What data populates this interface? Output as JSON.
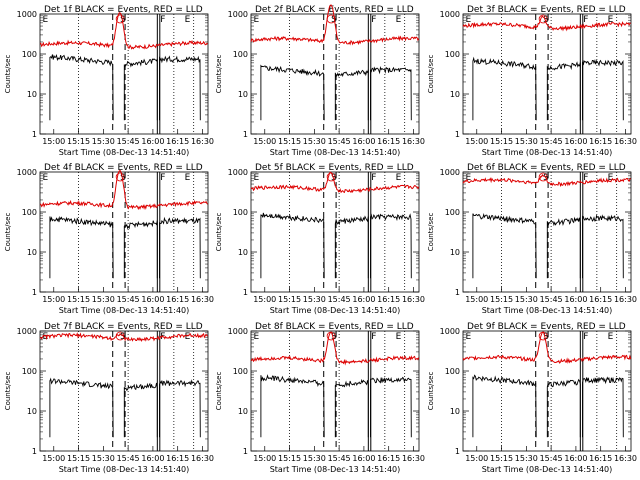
{
  "axes_common": {
    "ylabel": "Counts/sec",
    "xlabel": "Start Time (08-Dec-13 14:51:40)",
    "x_ticks": [
      "15:00",
      "15:15",
      "15:30",
      "15:45",
      "16:00",
      "16:15",
      "16:30"
    ],
    "y_ticks": [
      "1",
      "10",
      "100",
      "1000"
    ],
    "scale": "log"
  },
  "colors": {
    "events": "#000000",
    "lld": "#dd0000"
  },
  "chart_data": [
    {
      "type": "line",
      "title": "Det 1f BLACK = Events, RED = LLD",
      "ylim": [
        1,
        1000
      ],
      "series": [
        {
          "name": "Events",
          "baseline": 75,
          "peak": 0
        },
        {
          "name": "LLD",
          "baseline": 170,
          "peak": 1100
        }
      ],
      "markers": [
        "E",
        "S",
        "F",
        "E"
      ]
    },
    {
      "type": "line",
      "title": "Det 2f BLACK = Events, RED = LLD",
      "ylim": [
        1,
        1000
      ],
      "series": [
        {
          "name": "Events",
          "baseline": 40,
          "peak": 0
        },
        {
          "name": "LLD",
          "baseline": 220,
          "peak": 1700
        }
      ],
      "markers": [
        "E",
        "S",
        "F",
        "E"
      ]
    },
    {
      "type": "line",
      "title": "Det 3f BLACK = Events, RED = LLD",
      "ylim": [
        1,
        1000
      ],
      "series": [
        {
          "name": "Events",
          "baseline": 60,
          "peak": 0
        },
        {
          "name": "LLD",
          "baseline": 500,
          "peak": 900
        }
      ],
      "markers": [
        "E",
        "S",
        "F",
        "E"
      ]
    },
    {
      "type": "line",
      "title": "Det 4f BLACK = Events, RED = LLD",
      "ylim": [
        1,
        1000
      ],
      "series": [
        {
          "name": "Events",
          "baseline": 60,
          "peak": 0
        },
        {
          "name": "LLD",
          "baseline": 150,
          "peak": 1100
        }
      ],
      "markers": [
        "E",
        "S",
        "F",
        "E"
      ]
    },
    {
      "type": "line",
      "title": "Det 5f BLACK = Events, RED = LLD",
      "ylim": [
        1,
        1000
      ],
      "series": [
        {
          "name": "Events",
          "baseline": 75,
          "peak": 0
        },
        {
          "name": "LLD",
          "baseline": 380,
          "peak": 1000
        }
      ],
      "markers": [
        "E",
        "S",
        "F",
        "E"
      ]
    },
    {
      "type": "line",
      "title": "Det 6f BLACK = Events, RED = LLD",
      "ylim": [
        1,
        1000
      ],
      "series": [
        {
          "name": "Events",
          "baseline": 70,
          "peak": 0
        },
        {
          "name": "LLD",
          "baseline": 570,
          "peak": 900
        }
      ],
      "markers": [
        "E",
        "S",
        "F",
        "E"
      ]
    },
    {
      "type": "line",
      "title": "Det 7f BLACK = Events, RED = LLD",
      "ylim": [
        1,
        1000
      ],
      "series": [
        {
          "name": "Events",
          "baseline": 50,
          "peak": 0
        },
        {
          "name": "LLD",
          "baseline": 700,
          "peak": 900
        }
      ],
      "markers": [
        "E",
        "S",
        "F",
        "E"
      ]
    },
    {
      "type": "line",
      "title": "Det 8f BLACK = Events, RED = LLD",
      "ylim": [
        1,
        1000
      ],
      "series": [
        {
          "name": "Events",
          "baseline": 60,
          "peak": 0
        },
        {
          "name": "LLD",
          "baseline": 190,
          "peak": 950
        }
      ],
      "markers": [
        "E",
        "S",
        "F",
        "E"
      ]
    },
    {
      "type": "line",
      "title": "Det 9f BLACK = Events, RED = LLD",
      "ylim": [
        1,
        1000
      ],
      "series": [
        {
          "name": "Events",
          "baseline": 60,
          "peak": 0
        },
        {
          "name": "LLD",
          "baseline": 200,
          "peak": 950
        }
      ],
      "markers": [
        "E",
        "S",
        "F",
        "E"
      ]
    }
  ]
}
